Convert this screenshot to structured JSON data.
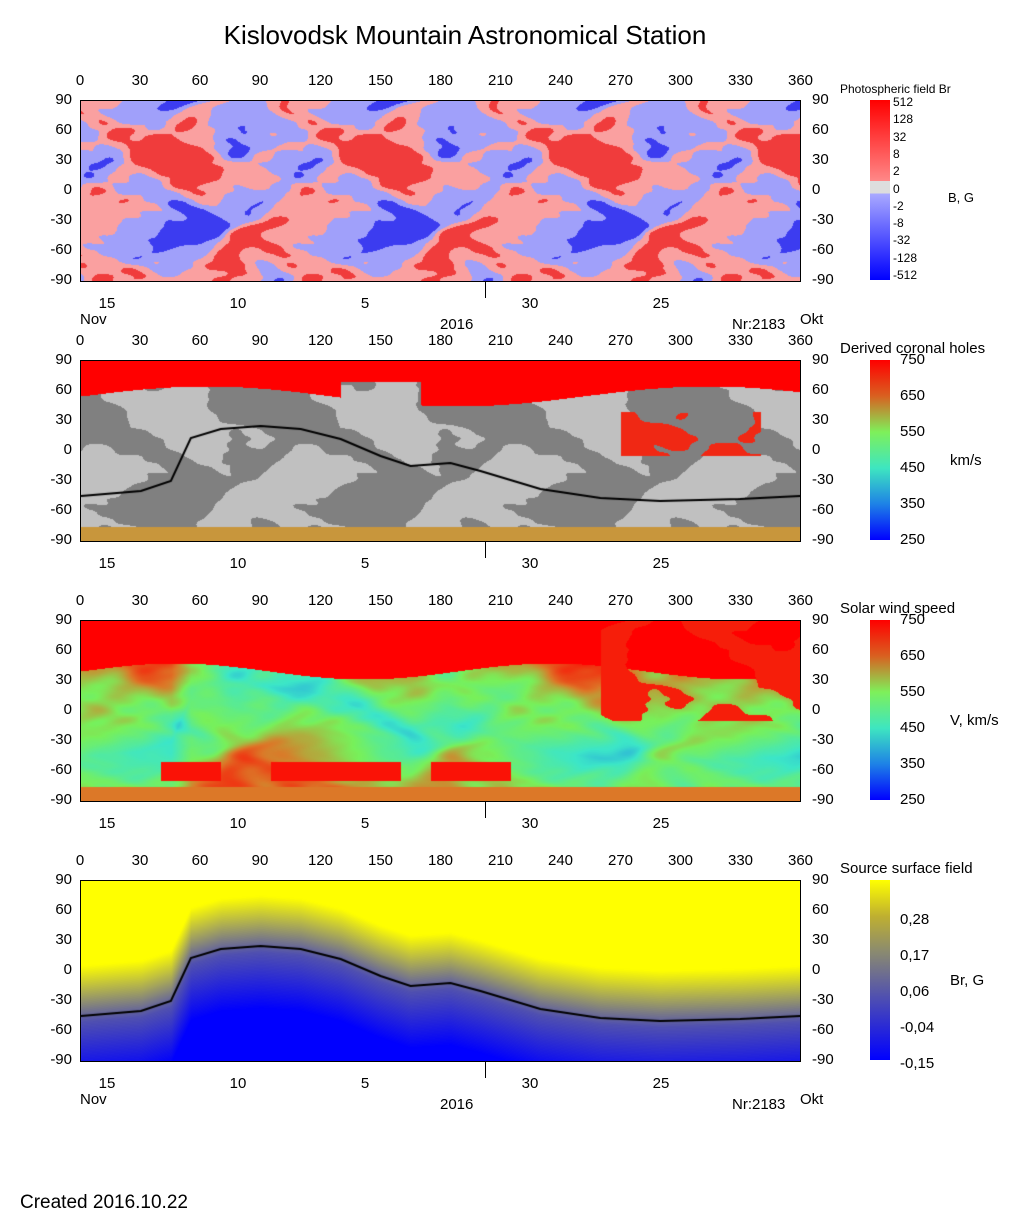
{
  "title": "Kislovodsk Mountain Astronomical Station",
  "created": "Created  2016.10.22",
  "lon_ticks": [
    "0",
    "30",
    "60",
    "90",
    "120",
    "150",
    "180",
    "210",
    "240",
    "270",
    "300",
    "330",
    "360"
  ],
  "lat_ticks": [
    "90",
    "60",
    "30",
    "0",
    "-30",
    "-60",
    "-90"
  ],
  "date_ticks": [
    "15",
    "10",
    "5",
    "30",
    "25"
  ],
  "month_left": "Nov",
  "month_right": "Okt",
  "year": "2016",
  "rotation": "Nr:2183",
  "chart_data": [
    {
      "type": "heatmap",
      "title": "Photospheric field Br",
      "unit": "B, G",
      "xlim": [
        0,
        360
      ],
      "ylim": [
        -90,
        90
      ],
      "colorbar_ticks": [
        "512",
        "128",
        "32",
        "8",
        "2",
        "0",
        "-2",
        "-8",
        "-32",
        "-128",
        "-512"
      ]
    },
    {
      "type": "heatmap",
      "title": "Derived coronal holes",
      "unit": "km/s",
      "xlim": [
        0,
        360
      ],
      "ylim": [
        -90,
        90
      ],
      "colorbar_ticks": [
        "750",
        "650",
        "550",
        "450",
        "350",
        "250"
      ],
      "neutral_line": {
        "lon": [
          0,
          30,
          45,
          55,
          70,
          90,
          110,
          130,
          150,
          165,
          185,
          200,
          230,
          260,
          290,
          330,
          360
        ],
        "lat": [
          -45,
          -40,
          -30,
          13,
          22,
          25,
          22,
          12,
          -5,
          -15,
          -12,
          -20,
          -38,
          -47,
          -50,
          -48,
          -45
        ]
      }
    },
    {
      "type": "heatmap",
      "title": "Solar wind speed",
      "unit": "V, km/s",
      "xlim": [
        0,
        360
      ],
      "ylim": [
        -90,
        90
      ],
      "colorbar_ticks": [
        "750",
        "650",
        "550",
        "450",
        "350",
        "250"
      ]
    },
    {
      "type": "heatmap",
      "title": "Source surface field",
      "unit": "Br, G",
      "xlim": [
        0,
        360
      ],
      "ylim": [
        -90,
        90
      ],
      "colorbar_ticks": [
        "0,28",
        "0,17",
        "0,06",
        "-0,04",
        "-0,15"
      ],
      "neutral_line": {
        "lon": [
          0,
          30,
          45,
          55,
          70,
          90,
          110,
          130,
          150,
          165,
          185,
          200,
          230,
          260,
          290,
          330,
          360
        ],
        "lat": [
          -45,
          -40,
          -30,
          13,
          22,
          25,
          22,
          12,
          -5,
          -15,
          -12,
          -20,
          -38,
          -47,
          -50,
          -48,
          -45
        ]
      }
    }
  ]
}
